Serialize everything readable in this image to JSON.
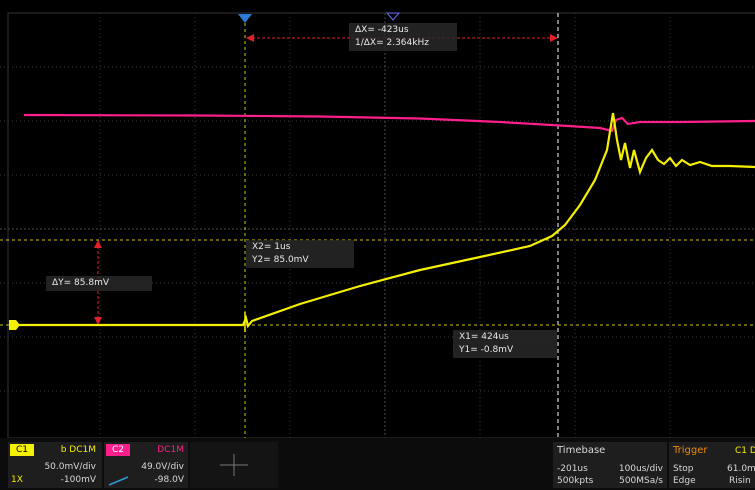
{
  "cursors": {
    "delta_x": {
      "line1": "ΔX= -423us",
      "line2": "1/ΔX= 2.364kHz"
    },
    "delta_y": "ΔY= 85.8mV",
    "x2": {
      "line1": "X2= 1us",
      "line2": "Y2= 85.0mV"
    },
    "x1": {
      "line1": "X1= 424us",
      "line2": "Y1= -0.8mV"
    }
  },
  "channel1": {
    "tag": "C1",
    "coupling": "b DC1M",
    "scale": "50.0mV/div",
    "probe": "1X",
    "offset": "-100mV",
    "color": "#f5f000"
  },
  "channel2": {
    "tag": "C2",
    "coupling": "DC1M",
    "scale": "49.0V/div",
    "offset": "-98.0V",
    "color": "#ff1f8a"
  },
  "timebase": {
    "title": "Timebase",
    "delay": "-201us",
    "scale": "100us/div",
    "memory": "500kpts",
    "sample_rate": "500MSa/s"
  },
  "trigger": {
    "title": "Trigger",
    "source": "C1 D",
    "state": "Stop",
    "level": "61.0m",
    "type": "Edge",
    "slope": "Risin"
  },
  "colors": {
    "cursor_red": "#e0202a",
    "grid": "#3a3a3a",
    "accent_orange": "#f08a00"
  }
}
